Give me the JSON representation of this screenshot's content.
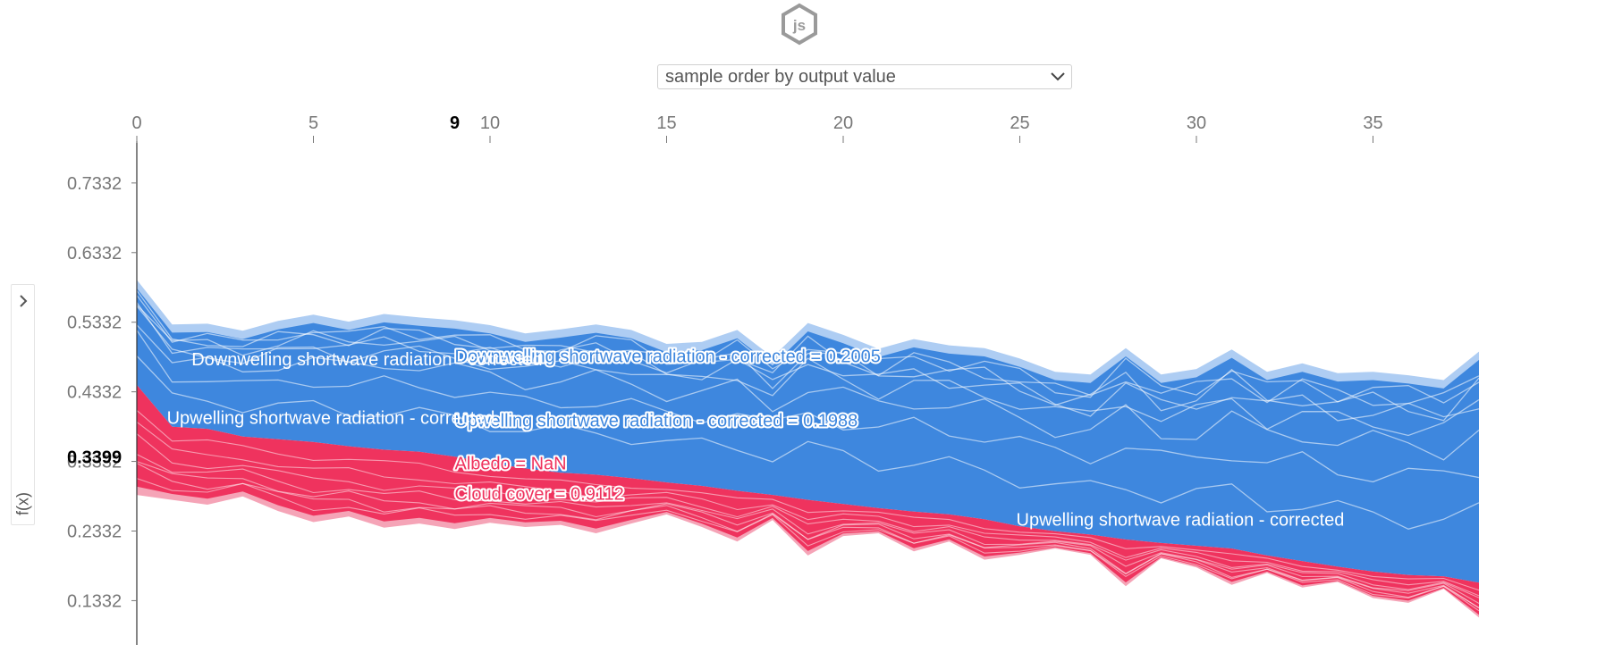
{
  "header": {
    "logo_text": "js"
  },
  "controls": {
    "sort_select": {
      "value": "sample order by output value"
    },
    "ylabel": "f(x)"
  },
  "colors": {
    "blue": "#3e87de",
    "red": "#ef335e",
    "blue_edge": "#aecdf3",
    "red_edge": "#f5a4b7",
    "axis": "#333333"
  },
  "chart_data": {
    "type": "area",
    "xlim": [
      0,
      38
    ],
    "ylim": [
      0.076,
      0.81
    ],
    "x_ticks": [
      0,
      5,
      10,
      15,
      20,
      25,
      30,
      35
    ],
    "x_tick_labels": [
      "0",
      "5",
      "10",
      "15",
      "20",
      "25",
      "30",
      "35"
    ],
    "y_ticks": [
      0.1332,
      0.2332,
      0.3332,
      0.4332,
      0.5332,
      0.6332,
      0.7332
    ],
    "y_tick_labels": [
      "0.1332",
      "0.2332",
      "0.3332",
      "0.4332",
      "0.5332",
      "0.6332",
      "0.7332"
    ],
    "current_sample": {
      "x": 9,
      "x_label": "9",
      "y_label": "0.3399"
    },
    "output_value": [
      0.443,
      0.383,
      0.38,
      0.369,
      0.365,
      0.361,
      0.355,
      0.35,
      0.347,
      0.34,
      0.331,
      0.323,
      0.317,
      0.314,
      0.309,
      0.303,
      0.298,
      0.291,
      0.285,
      0.278,
      0.272,
      0.266,
      0.261,
      0.257,
      0.25,
      0.24,
      0.233,
      0.228,
      0.221,
      0.216,
      0.212,
      0.208,
      0.198,
      0.19,
      0.182,
      0.175,
      0.17,
      0.168,
      0.159
    ],
    "upper_bound": [
      0.594,
      0.53,
      0.531,
      0.521,
      0.535,
      0.544,
      0.534,
      0.545,
      0.54,
      0.536,
      0.529,
      0.517,
      0.523,
      0.53,
      0.522,
      0.502,
      0.505,
      0.522,
      0.483,
      0.532,
      0.515,
      0.495,
      0.509,
      0.5,
      0.496,
      0.481,
      0.462,
      0.458,
      0.496,
      0.458,
      0.466,
      0.494,
      0.462,
      0.474,
      0.46,
      0.462,
      0.457,
      0.45,
      0.491
    ],
    "lower_bound": [
      0.285,
      0.278,
      0.271,
      0.283,
      0.262,
      0.246,
      0.254,
      0.238,
      0.244,
      0.236,
      0.245,
      0.239,
      0.242,
      0.23,
      0.244,
      0.257,
      0.239,
      0.218,
      0.249,
      0.198,
      0.226,
      0.23,
      0.204,
      0.218,
      0.192,
      0.199,
      0.208,
      0.199,
      0.154,
      0.194,
      0.181,
      0.156,
      0.173,
      0.152,
      0.16,
      0.137,
      0.13,
      0.15,
      0.109
    ],
    "labels": [
      {
        "text": "Downwelling shortwave radiation - corrected = 0.2005",
        "color": "blue",
        "x": 9,
        "y": 0.485
      },
      {
        "text": "Upwelling shortwave radiation - corrected = 0.1988",
        "color": "blue",
        "x": 9,
        "y": 0.392
      },
      {
        "text": "Albedo = NaN",
        "color": "red",
        "x": 9,
        "y": 0.331
      },
      {
        "text": "Cloud cover = 0.9112",
        "color": "red",
        "x": 9,
        "y": 0.287
      },
      {
        "text": "Downwelling shortwave radiation - corrected",
        "color": "white",
        "x": 1.55,
        "y": 0.48
      },
      {
        "text": "Upwelling shortwave radiation - corrected",
        "color": "white",
        "x": 0.85,
        "y": 0.396
      },
      {
        "text": "Upwelling shortwave radiation - corrected",
        "color": "white",
        "x": 24.9,
        "y": 0.25
      }
    ]
  }
}
